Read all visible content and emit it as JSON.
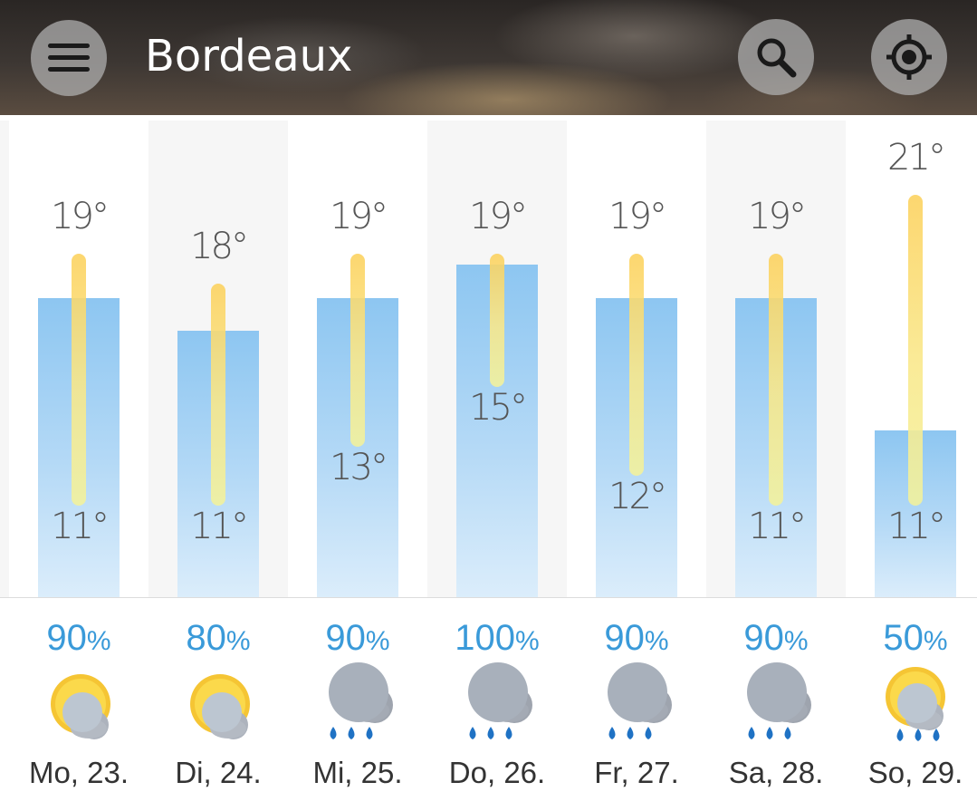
{
  "header": {
    "city": "Bordeaux"
  },
  "icons": {
    "menu": "menu-icon",
    "search": "search-icon",
    "location": "location-target-icon",
    "partly_cloudy": "partly-cloudy-icon",
    "rain": "rain-cloud-icon",
    "partly_cloudy_rain": "partly-cloudy-rain-icon"
  },
  "colors": {
    "precip_text": "#3a9ad9",
    "precip_bar": "#8dc6f1",
    "temp_bar": "#fcd15c"
  },
  "days": [
    {
      "label": "Mo, 23.",
      "high": "19°",
      "low": "11°",
      "precip_value": "90",
      "precip_unit": "%",
      "precip_level": 90,
      "icon": "partly-cloudy-icon"
    },
    {
      "label": "Di, 24.",
      "high": "18°",
      "low": "11°",
      "precip_value": "80",
      "precip_unit": "%",
      "precip_level": 80,
      "icon": "partly-cloudy-icon"
    },
    {
      "label": "Mi, 25.",
      "high": "19°",
      "low": "13°",
      "precip_value": "90",
      "precip_unit": "%",
      "precip_level": 90,
      "icon": "rain-cloud-icon"
    },
    {
      "label": "Do, 26.",
      "high": "19°",
      "low": "15°",
      "precip_value": "100",
      "precip_unit": "%",
      "precip_level": 100,
      "icon": "rain-cloud-icon"
    },
    {
      "label": "Fr, 27.",
      "high": "19°",
      "low": "12°",
      "precip_value": "90",
      "precip_unit": "%",
      "precip_level": 90,
      "icon": "rain-cloud-icon"
    },
    {
      "label": "Sa, 28.",
      "high": "19°",
      "low": "11°",
      "precip_value": "90",
      "precip_unit": "%",
      "precip_level": 90,
      "icon": "rain-cloud-icon"
    },
    {
      "label": "So, 29.",
      "high": "21°",
      "low": "11°",
      "precip_value": "50",
      "precip_unit": "%",
      "precip_level": 50,
      "icon": "partly-cloudy-rain-icon"
    }
  ]
}
